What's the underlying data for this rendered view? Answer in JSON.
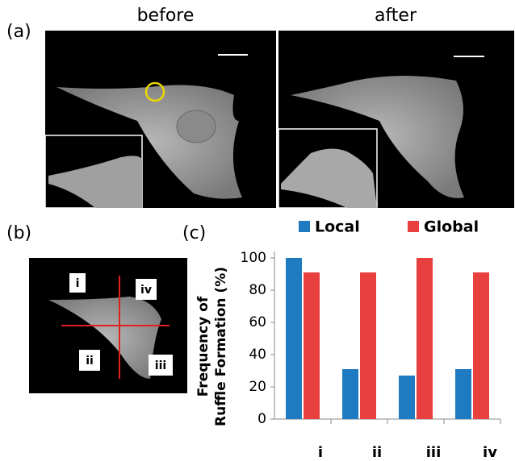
{
  "panel_labels": [
    "(a)",
    "(b)",
    "(c)"
  ],
  "image_labels": {
    "before": "before",
    "after": "after"
  },
  "quadrant_labels": [
    "i",
    "iv",
    "ii",
    "iii"
  ],
  "chart_data": {
    "type": "bar",
    "y_label": [
      "Frequency of",
      "Ruffle Formation (%)"
    ],
    "categories": [
      "i",
      "ii",
      "iii",
      "iv"
    ],
    "series": [
      {
        "name": "Local",
        "color": "#1f7bc1",
        "values": [
          100,
          31,
          27,
          31
        ]
      },
      {
        "name": "Global",
        "color": "#e8403f",
        "values": [
          91,
          91,
          100,
          91
        ]
      }
    ],
    "ylim": [
      0,
      100
    ],
    "yticks": [
      0,
      20,
      40,
      60,
      80,
      100
    ]
  }
}
